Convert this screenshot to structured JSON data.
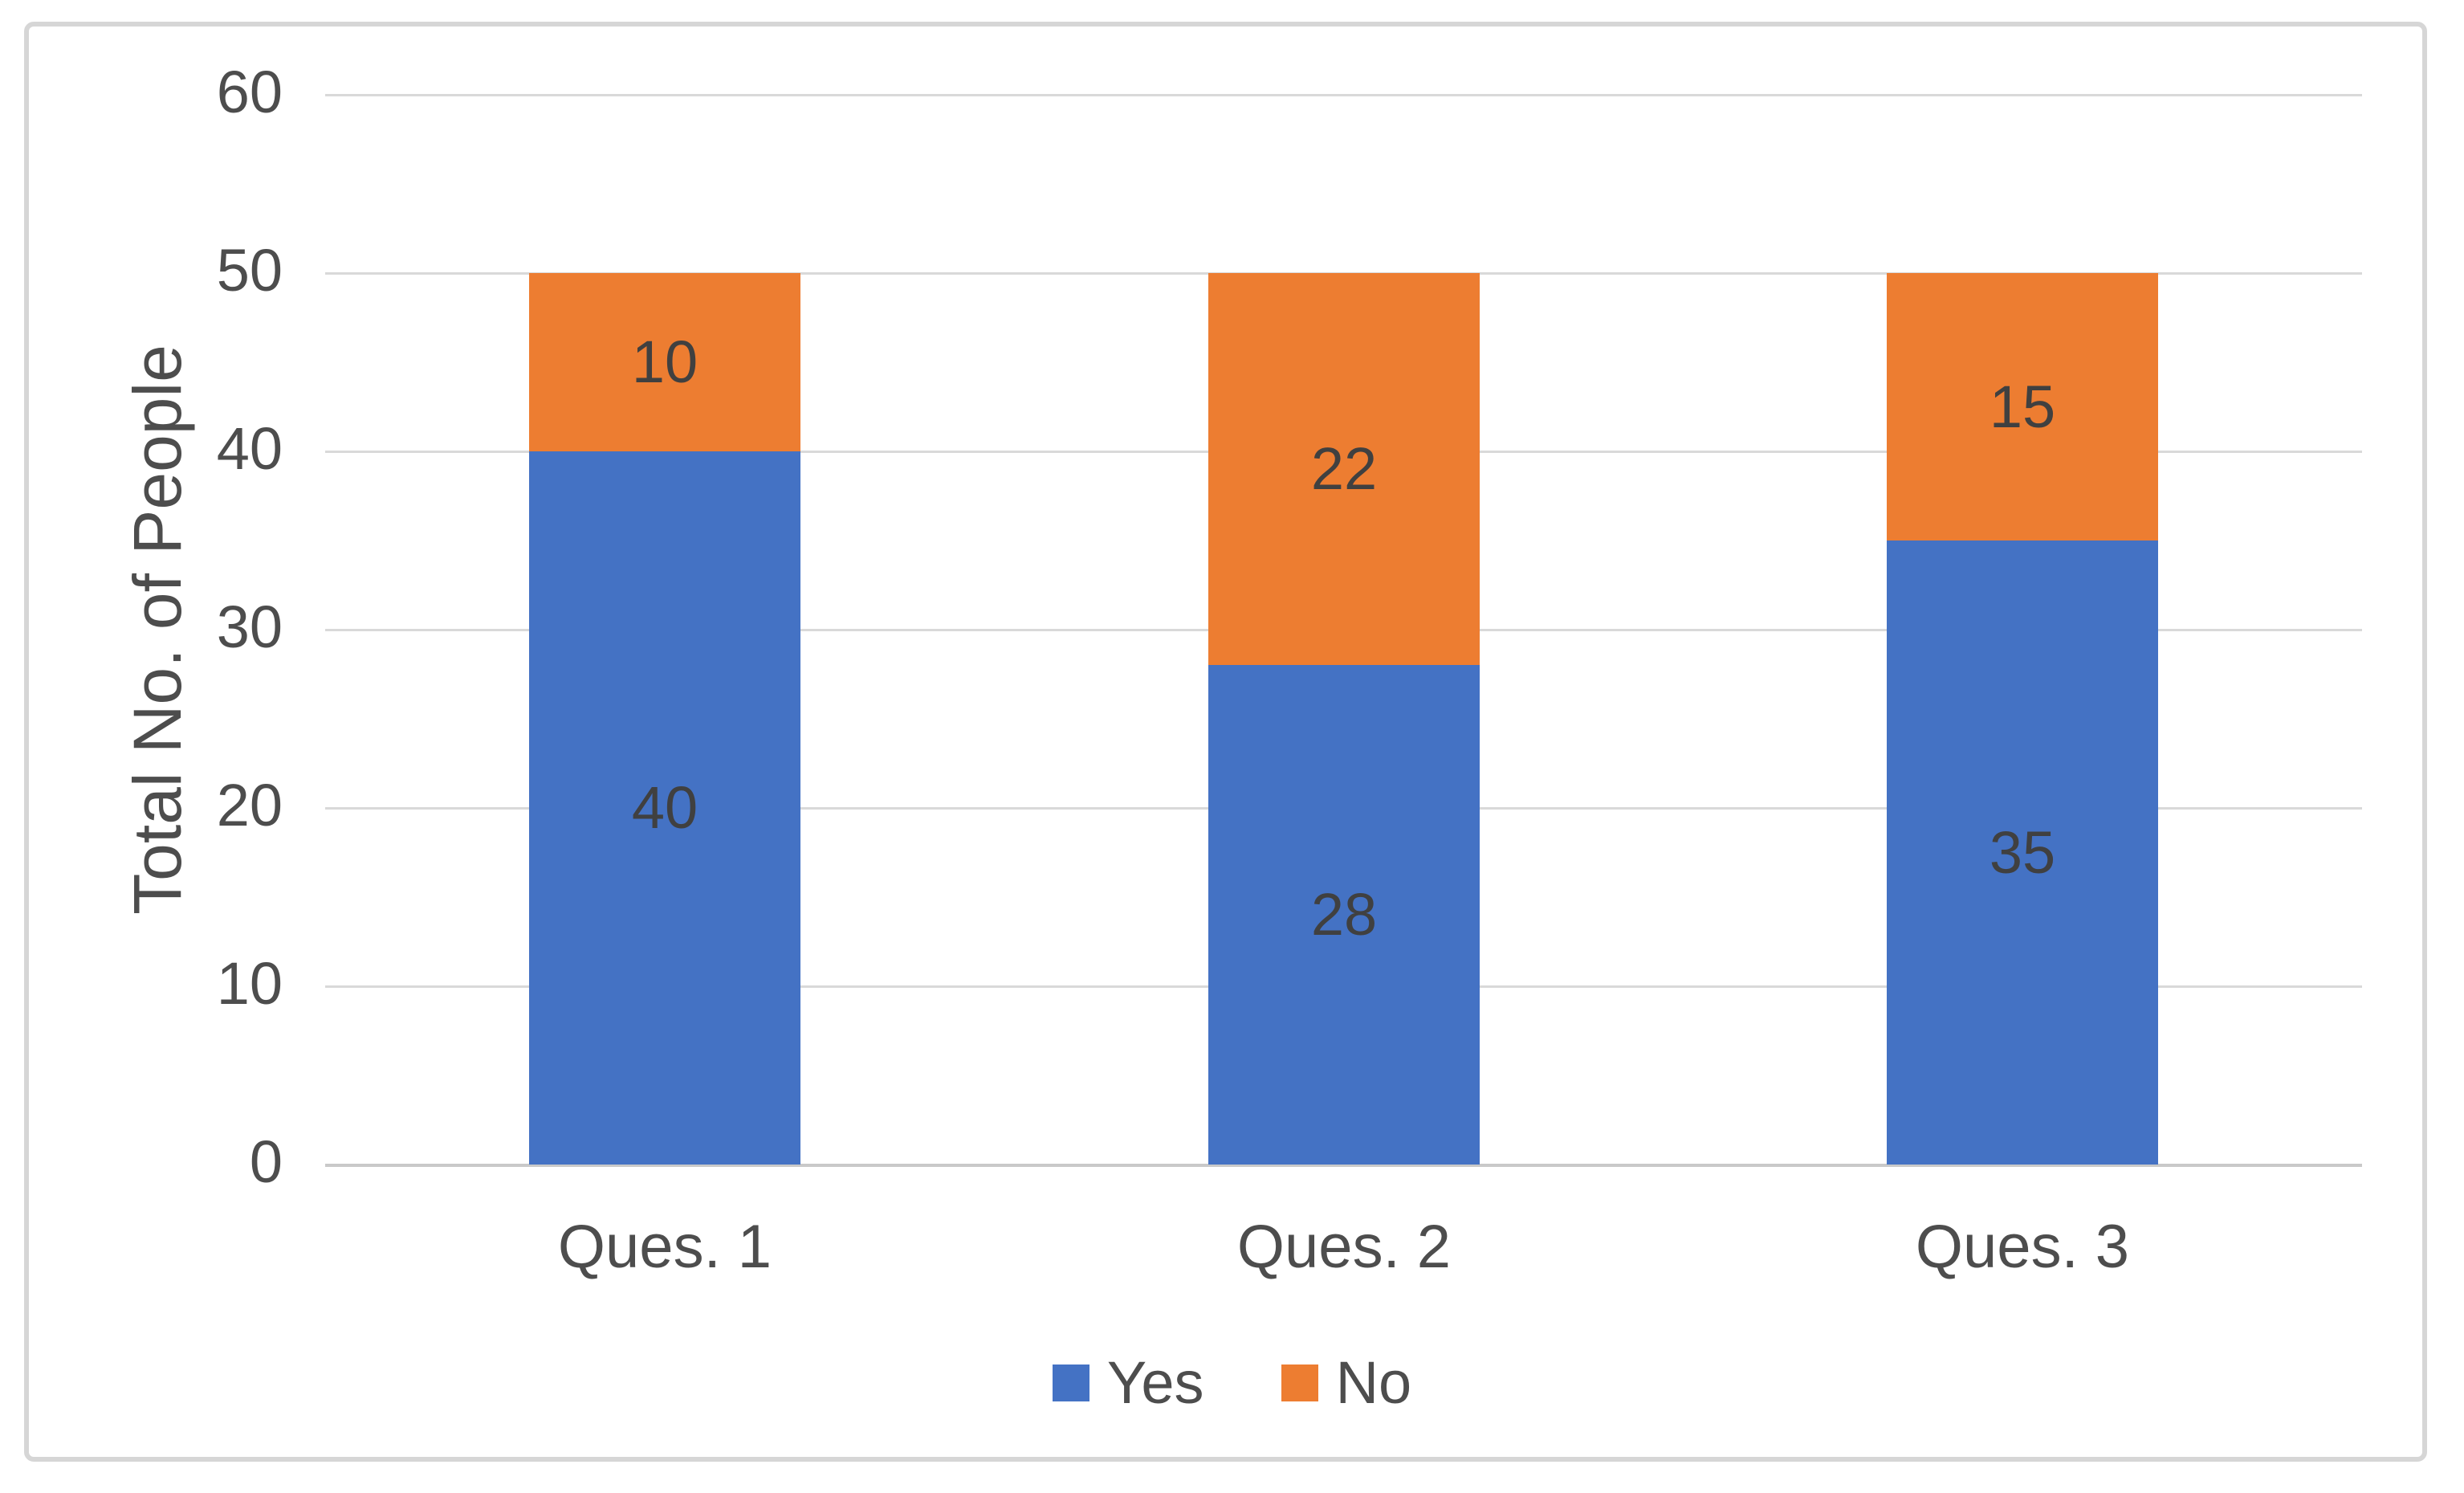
{
  "chart_data": {
    "type": "bar",
    "stacked": true,
    "title": "",
    "categories": [
      "Ques. 1",
      "Ques. 2",
      "Ques. 3"
    ],
    "series": [
      {
        "name": "Yes",
        "color": "#4472C4",
        "values": [
          40,
          28,
          35
        ]
      },
      {
        "name": "No",
        "color": "#ED7D31",
        "values": [
          10,
          22,
          15
        ]
      }
    ],
    "xlabel": "",
    "ylabel": "Total No. of People",
    "ylim": [
      0,
      60
    ],
    "yticks": [
      0,
      10,
      20,
      30,
      40,
      50,
      60
    ],
    "grid": true,
    "legend_position": "bottom",
    "data_labels": "center"
  },
  "colors": {
    "background": "#ffffff",
    "frame_border": "#d6d6d6",
    "gridline": "#d9d9d9",
    "axis_line": "#c9c9c9",
    "axis_text": "#4d4d4d",
    "data_label_text": "#404040"
  }
}
